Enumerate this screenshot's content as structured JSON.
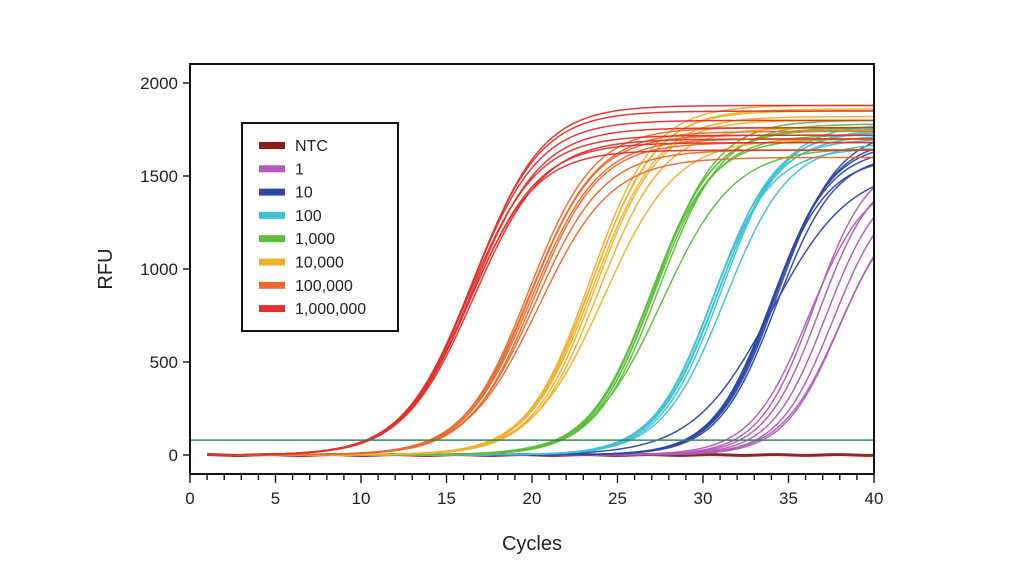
{
  "chart_data": {
    "type": "line",
    "title": "",
    "xlabel": "Cycles",
    "ylabel": "RFU",
    "xlim": [
      0,
      40
    ],
    "ylim": [
      -100,
      2100
    ],
    "xticks": [
      0,
      5,
      10,
      15,
      20,
      25,
      30,
      35,
      40
    ],
    "xtick_labels": [
      "0",
      "5",
      "10",
      "15",
      "20",
      "25",
      "30",
      "35",
      "40"
    ],
    "yticks": [
      0,
      500,
      1000,
      1500,
      2000
    ],
    "ytick_labels": [
      "0",
      "500",
      "1000",
      "1500",
      "2000"
    ],
    "grid": false,
    "legend_position": "top-left",
    "threshold": {
      "value": 80,
      "color": "#2e8b57"
    },
    "x_start": 1,
    "model": "sigmoid: rfu = plateau / (1 + exp(-(cycle - midpoint) / slope))",
    "series": [
      {
        "name": "NTC",
        "color": "#8b1a1a",
        "replicates": [
          {
            "plateau": 0,
            "midpoint": 0,
            "slope": 1
          }
        ]
      },
      {
        "name": "1",
        "color": "#b05cb8",
        "replicates": [
          {
            "plateau": 1500,
            "midpoint": 37.2,
            "slope": 1.6
          },
          {
            "plateau": 1450,
            "midpoint": 37.6,
            "slope": 1.6
          },
          {
            "plateau": 1550,
            "midpoint": 36.8,
            "slope": 1.6
          },
          {
            "plateau": 1400,
            "midpoint": 38.0,
            "slope": 1.7
          },
          {
            "plateau": 1600,
            "midpoint": 36.5,
            "slope": 1.6
          },
          {
            "plateau": 1350,
            "midpoint": 37.9,
            "slope": 1.6
          },
          {
            "plateau": 1500,
            "midpoint": 36.2,
            "slope": 1.7
          }
        ]
      },
      {
        "name": "10",
        "color": "#2d48a8",
        "replicates": [
          {
            "plateau": 1650,
            "midpoint": 34.0,
            "slope": 1.7
          },
          {
            "plateau": 1700,
            "midpoint": 34.2,
            "slope": 1.7
          },
          {
            "plateau": 1600,
            "midpoint": 33.9,
            "slope": 1.7
          },
          {
            "plateau": 1750,
            "midpoint": 34.4,
            "slope": 1.75
          },
          {
            "plateau": 1680,
            "midpoint": 34.1,
            "slope": 1.7
          },
          {
            "plateau": 1620,
            "midpoint": 34.3,
            "slope": 1.7
          },
          {
            "plateau": 1550,
            "midpoint": 34.0,
            "slope": 2.3
          }
        ]
      },
      {
        "name": "100",
        "color": "#3fc1d4",
        "replicates": [
          {
            "plateau": 1700,
            "midpoint": 30.6,
            "slope": 1.75
          },
          {
            "plateau": 1750,
            "midpoint": 30.9,
            "slope": 1.8
          },
          {
            "plateau": 1650,
            "midpoint": 30.5,
            "slope": 1.75
          },
          {
            "plateau": 1780,
            "midpoint": 31.1,
            "slope": 1.8
          },
          {
            "plateau": 1720,
            "midpoint": 30.8,
            "slope": 1.8
          },
          {
            "plateau": 1680,
            "midpoint": 31.3,
            "slope": 1.85
          },
          {
            "plateau": 1740,
            "midpoint": 30.7,
            "slope": 1.8
          }
        ]
      },
      {
        "name": "1,000",
        "color": "#5cbf3a",
        "replicates": [
          {
            "plateau": 1750,
            "midpoint": 27.0,
            "slope": 1.8
          },
          {
            "plateau": 1800,
            "midpoint": 27.2,
            "slope": 1.8
          },
          {
            "plateau": 1700,
            "midpoint": 26.9,
            "slope": 1.8
          },
          {
            "plateau": 1780,
            "midpoint": 27.4,
            "slope": 1.85
          },
          {
            "plateau": 1720,
            "midpoint": 27.1,
            "slope": 1.8
          },
          {
            "plateau": 1650,
            "midpoint": 27.6,
            "slope": 2.1
          },
          {
            "plateau": 1760,
            "midpoint": 27.0,
            "slope": 1.85
          }
        ]
      },
      {
        "name": "10,000",
        "color": "#f2b02a",
        "replicates": [
          {
            "plateau": 1850,
            "midpoint": 23.5,
            "slope": 1.85
          },
          {
            "plateau": 1800,
            "midpoint": 23.7,
            "slope": 1.85
          },
          {
            "plateau": 1880,
            "midpoint": 23.4,
            "slope": 1.85
          },
          {
            "plateau": 1760,
            "midpoint": 23.9,
            "slope": 1.9
          },
          {
            "plateau": 1820,
            "midpoint": 23.6,
            "slope": 1.9
          },
          {
            "plateau": 1700,
            "midpoint": 24.2,
            "slope": 2.1
          },
          {
            "plateau": 1860,
            "midpoint": 23.5,
            "slope": 1.9
          }
        ]
      },
      {
        "name": "100,000",
        "color": "#ec6a2c",
        "replicates": [
          {
            "plateau": 1720,
            "midpoint": 19.9,
            "slope": 1.9
          },
          {
            "plateau": 1680,
            "midpoint": 20.1,
            "slope": 1.9
          },
          {
            "plateau": 1760,
            "midpoint": 19.8,
            "slope": 1.9
          },
          {
            "plateau": 1640,
            "midpoint": 20.2,
            "slope": 2.0
          },
          {
            "plateau": 1700,
            "midpoint": 20.0,
            "slope": 1.95
          },
          {
            "plateau": 1600,
            "midpoint": 20.4,
            "slope": 2.1
          },
          {
            "plateau": 1740,
            "midpoint": 19.9,
            "slope": 1.95
          }
        ]
      },
      {
        "name": "1,000,000",
        "color": "#e3302c",
        "replicates": [
          {
            "plateau": 1880,
            "midpoint": 16.6,
            "slope": 2.0
          },
          {
            "plateau": 1850,
            "midpoint": 16.5,
            "slope": 2.0
          },
          {
            "plateau": 1800,
            "midpoint": 16.4,
            "slope": 2.0
          },
          {
            "plateau": 1760,
            "midpoint": 16.5,
            "slope": 2.0
          },
          {
            "plateau": 1720,
            "midpoint": 16.3,
            "slope": 2.0
          },
          {
            "plateau": 1680,
            "midpoint": 16.4,
            "slope": 2.0
          },
          {
            "plateau": 1640,
            "midpoint": 16.3,
            "slope": 1.95
          },
          {
            "plateau": 1700,
            "midpoint": 16.6,
            "slope": 2.05
          }
        ]
      }
    ]
  }
}
